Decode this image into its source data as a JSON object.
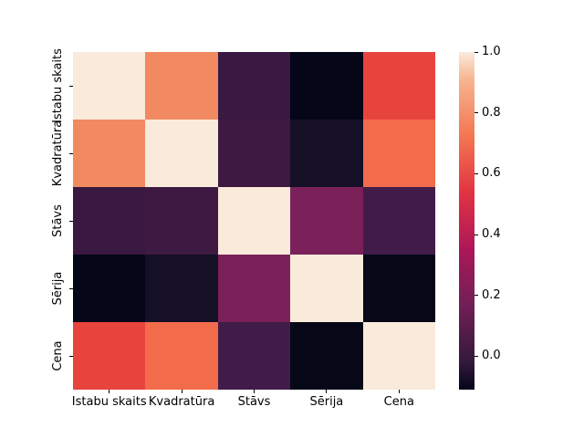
{
  "figure": {
    "background_color": "#ffffff",
    "text_color": "#000000"
  },
  "chart_data": {
    "type": "heatmap",
    "title": "",
    "description": "Correlation matrix heatmap (seaborn rocket colormap), Latvian variable labels",
    "categories": [
      "Istabu skaits",
      "Kvadratūra",
      "Stāvs",
      "Sērija",
      "Cena"
    ],
    "x_axis_labels": [
      "Istabu skaits",
      "Kvadratūra",
      "Stāvs",
      "Sērija",
      "Cena"
    ],
    "y_axis_labels": [
      "Istabu skaits",
      "Kvadratūra",
      "Stāvs",
      "Sērija",
      "Cena"
    ],
    "matrix": [
      [
        1.0,
        0.78,
        -0.01,
        -0.11,
        0.59
      ],
      [
        0.78,
        1.0,
        0.01,
        -0.08,
        0.7
      ],
      [
        -0.01,
        0.01,
        1.0,
        0.2,
        0.02
      ],
      [
        -0.11,
        -0.08,
        0.2,
        1.0,
        -0.1
      ],
      [
        0.59,
        0.7,
        0.02,
        -0.1,
        1.0
      ]
    ],
    "cell_colors": [
      [
        "#FAEADB",
        "#F18A60",
        "#391841",
        "#050617",
        "#E8443E"
      ],
      [
        "#F18A60",
        "#FAEADB",
        "#3E1A43",
        "#151026",
        "#F26B4A"
      ],
      [
        "#391841",
        "#3E1A43",
        "#FAEADB",
        "#7B2159",
        "#421C49"
      ],
      [
        "#050617",
        "#151026",
        "#7B2159",
        "#FAEADB",
        "#060818"
      ],
      [
        "#E8443E",
        "#F26B4A",
        "#421C49",
        "#060818",
        "#FAEADB"
      ]
    ],
    "colormap": "rocket",
    "vmin": -0.11,
    "vmax": 1.0,
    "grid": false,
    "colorbar": {
      "position": "right",
      "ticks": [
        1.0,
        0.8,
        0.6,
        0.4,
        0.2,
        0.0
      ],
      "tick_labels": [
        "1.0",
        "0.8",
        "0.6",
        "0.4",
        "0.2",
        "0.0"
      ],
      "gradient_stops": [
        {
          "color": "#FAEBDD",
          "pos": 0
        },
        {
          "color": "#F6B48F",
          "pos": 8.3
        },
        {
          "color": "#F37651",
          "pos": 25
        },
        {
          "color": "#E13342",
          "pos": 41.7
        },
        {
          "color": "#AD1759",
          "pos": 58.3
        },
        {
          "color": "#701F57",
          "pos": 75
        },
        {
          "color": "#35193E",
          "pos": 91.7
        },
        {
          "color": "#03051A",
          "pos": 100
        }
      ]
    }
  }
}
